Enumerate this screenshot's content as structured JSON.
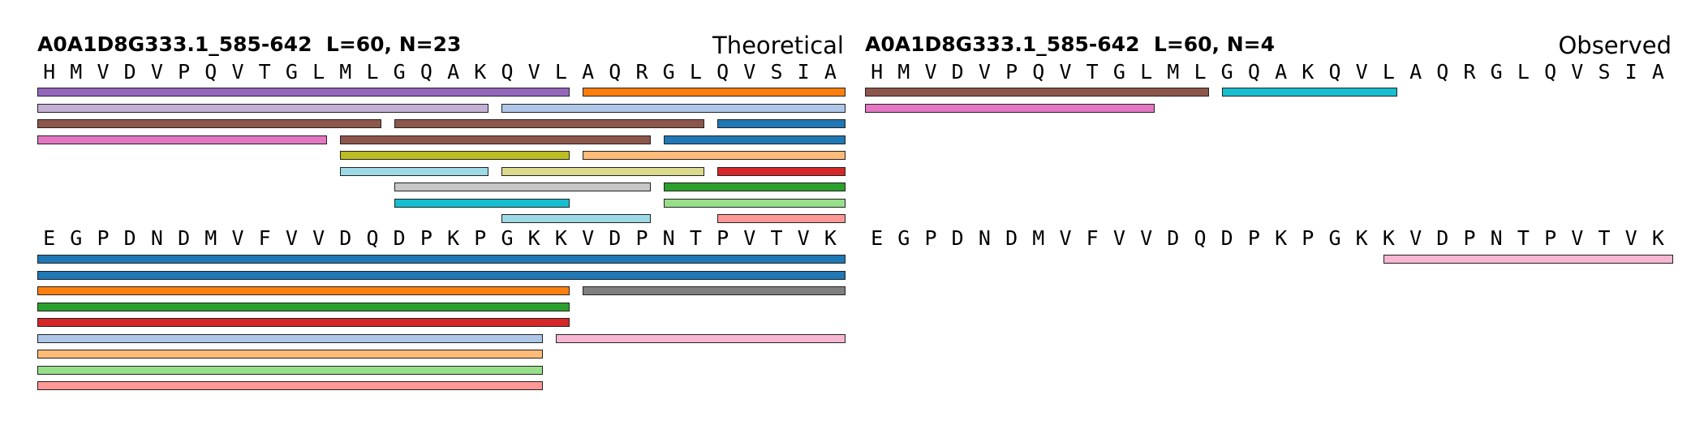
{
  "panels": [
    {
      "id": "theoretical",
      "title": "A0A1D8G333.1_585-642  L=60, N=23",
      "mode": "Theoretical",
      "rows": [
        {
          "sequence": "HMVDVPQVTGLMLGQAKQVLAQRGLQVSIA",
          "start": 1,
          "peptides": [
            {
              "start": 1,
              "end": 20,
              "color": "#9467bd"
            },
            {
              "start": 21,
              "end": 30,
              "color": "#ff7f0e"
            },
            {
              "start": 1,
              "end": 17,
              "color": "#c5b0d5"
            },
            {
              "start": 18,
              "end": 30,
              "color": "#aec7e8"
            },
            {
              "start": 1,
              "end": 13,
              "color": "#8c564b"
            },
            {
              "start": 14,
              "end": 25,
              "color": "#8c564b"
            },
            {
              "start": 26,
              "end": 30,
              "color": "#1f77b4"
            },
            {
              "start": 1,
              "end": 11,
              "color": "#e377c2"
            },
            {
              "start": 12,
              "end": 23,
              "color": "#8c564b"
            },
            {
              "start": 24,
              "end": 30,
              "color": "#1f77b4"
            },
            {
              "start": 12,
              "end": 20,
              "color": "#bcbd22"
            },
            {
              "start": 21,
              "end": 30,
              "color": "#ffbb78"
            },
            {
              "start": 12,
              "end": 17,
              "color": "#9edae5"
            },
            {
              "start": 18,
              "end": 25,
              "color": "#dbdb8d"
            },
            {
              "start": 26,
              "end": 30,
              "color": "#d62728"
            },
            {
              "start": 14,
              "end": 23,
              "color": "#c7c7c7"
            },
            {
              "start": 24,
              "end": 30,
              "color": "#2ca02c"
            },
            {
              "start": 14,
              "end": 20,
              "color": "#17becf"
            },
            {
              "start": 24,
              "end": 30,
              "color": "#98df8a"
            },
            {
              "start": 18,
              "end": 23,
              "color": "#9edae5"
            },
            {
              "start": 26,
              "end": 30,
              "color": "#ff9896"
            }
          ]
        },
        {
          "sequence": "EGPDNDMVFVVDQDPKPGKKVDPNTPVTVK",
          "start": 31,
          "peptides": [
            {
              "start": 31,
              "end": 60,
              "color": "#1f77b4"
            },
            {
              "start": 31,
              "end": 60,
              "color": "#1f77b4"
            },
            {
              "start": 31,
              "end": 50,
              "color": "#ff7f0e"
            },
            {
              "start": 51,
              "end": 60,
              "color": "#7f7f7f"
            },
            {
              "start": 31,
              "end": 50,
              "color": "#2ca02c"
            },
            {
              "start": 31,
              "end": 50,
              "color": "#d62728"
            },
            {
              "start": 31,
              "end": 49,
              "color": "#aec7e8"
            },
            {
              "start": 50,
              "end": 60,
              "color": "#f7b6d2"
            },
            {
              "start": 31,
              "end": 49,
              "color": "#ffbb78"
            },
            {
              "start": 31,
              "end": 49,
              "color": "#98df8a"
            },
            {
              "start": 31,
              "end": 49,
              "color": "#ff9896"
            }
          ]
        }
      ]
    },
    {
      "id": "observed",
      "title": "A0A1D8G333.1_585-642  L=60, N=4",
      "mode": "Observed",
      "rows": [
        {
          "sequence": "HMVDVPQVTGLMLGQAKQVLAQRGLQVSIA",
          "start": 1,
          "peptides": [
            {
              "start": 1,
              "end": 13,
              "color": "#8c564b"
            },
            {
              "start": 14,
              "end": 20,
              "color": "#17becf"
            },
            {
              "start": 1,
              "end": 11,
              "color": "#e377c2"
            }
          ]
        },
        {
          "sequence": "EGPDNDMVFVVDQDPKPGKKVDPNTPVTVK",
          "start": 31,
          "peptides": [
            {
              "start": 50,
              "end": 60,
              "color": "#f7b6d2"
            }
          ]
        }
      ]
    }
  ]
}
